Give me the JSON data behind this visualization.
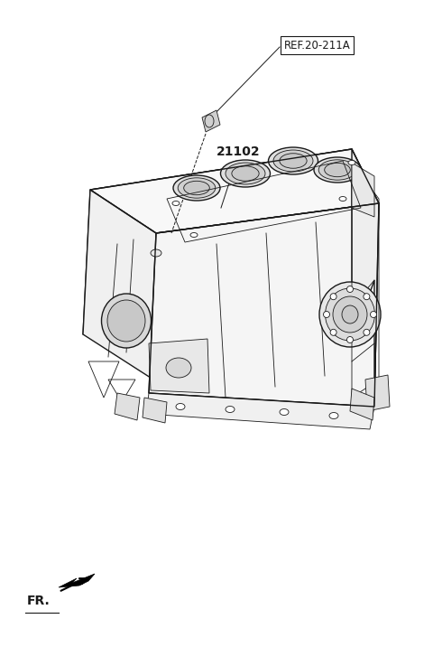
{
  "background_color": "#ffffff",
  "line_color": "#1a1a1a",
  "label_ref": "REF.20-211A",
  "label_part": "21102",
  "label_fr": "FR.",
  "figsize": [
    4.8,
    7.16
  ],
  "dpi": 100
}
